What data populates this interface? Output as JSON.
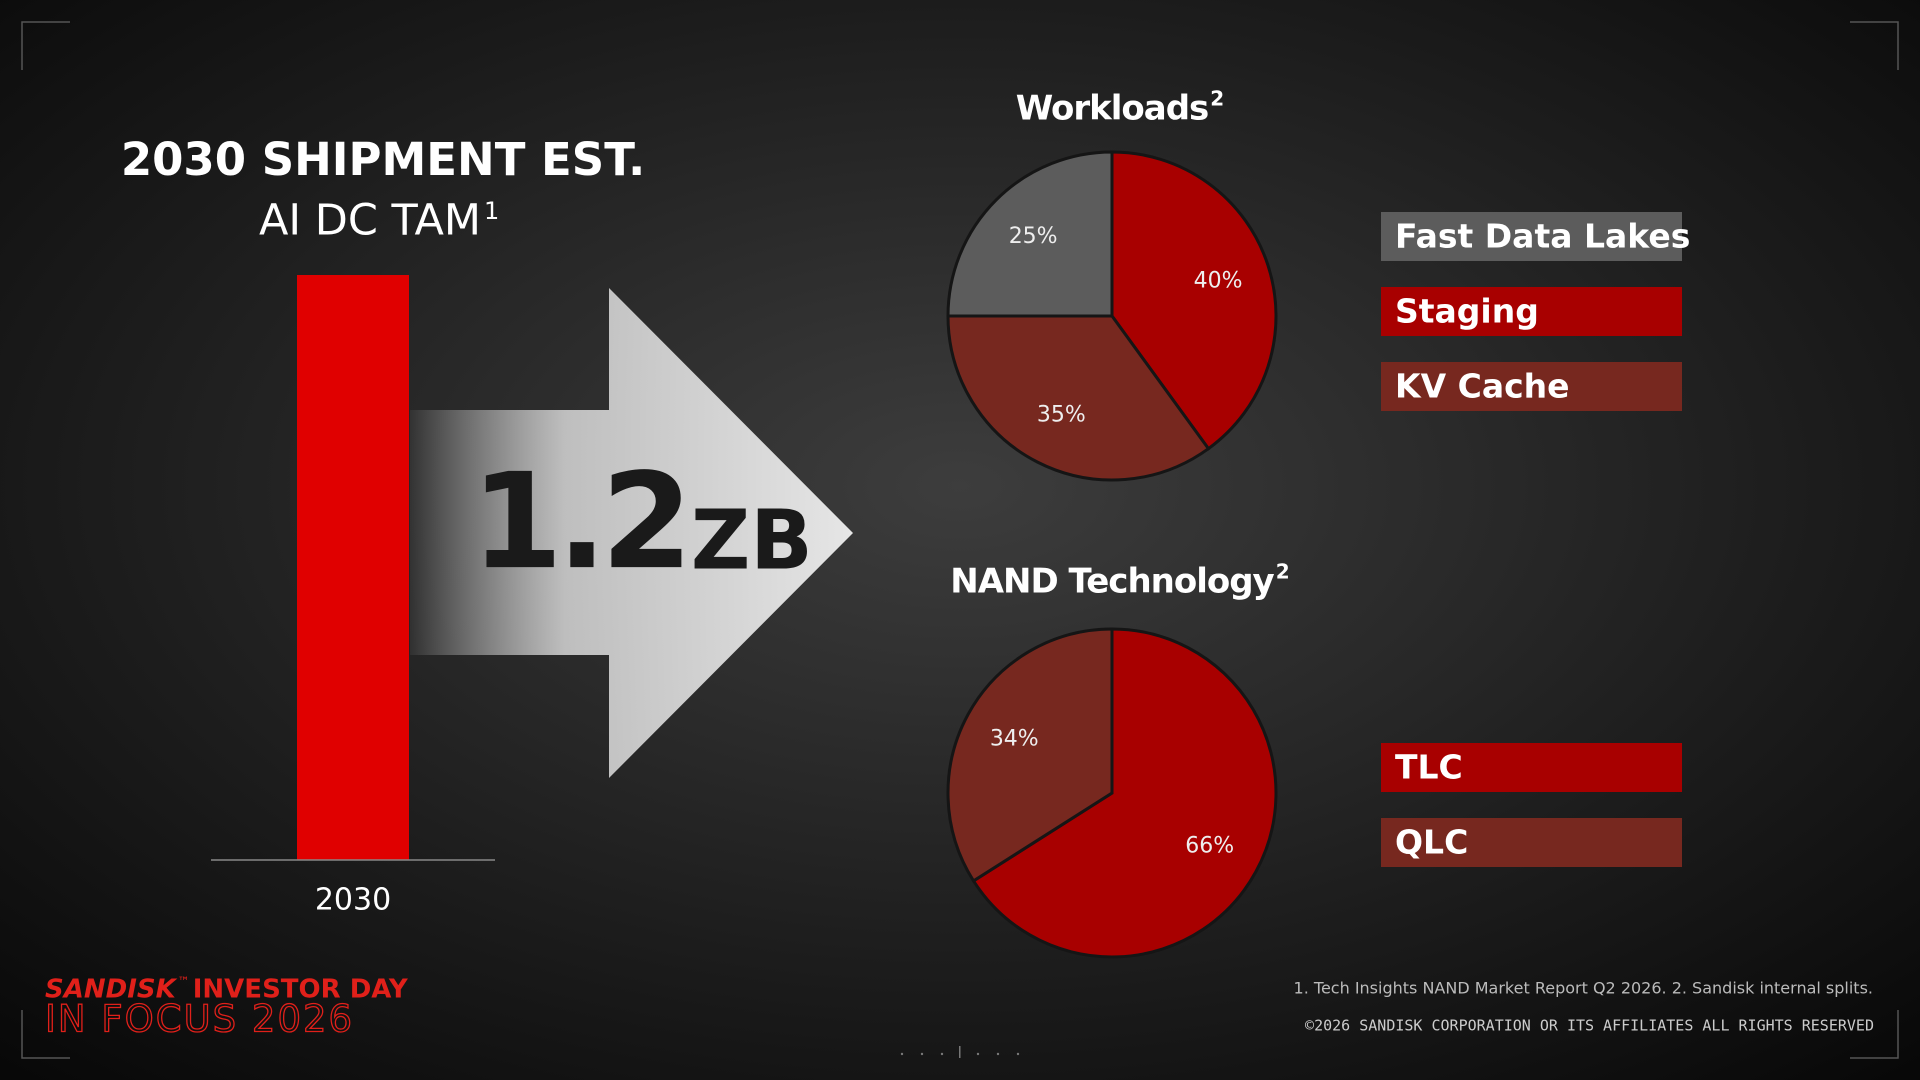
{
  "chart_data": [
    {
      "type": "bar",
      "title": "2030 SHIPMENT EST.",
      "subtitle": "AI DC TAM",
      "subtitle_footnote": "1",
      "categories": [
        "2030"
      ],
      "values": [
        1.2
      ],
      "unit": "ZB",
      "color": "#e00000"
    },
    {
      "type": "pie",
      "title": "Workloads",
      "title_footnote": "2",
      "categories": [
        "Fast Data Lakes",
        "Staging",
        "KV Cache"
      ],
      "values": [
        25,
        40,
        35
      ],
      "value_labels": [
        "25%",
        "40%",
        "35%"
      ],
      "colors": [
        "#5c5c5c",
        "#a80000",
        "#77281f"
      ]
    },
    {
      "type": "pie",
      "title": "NAND Technology",
      "title_footnote": "2",
      "categories": [
        "TLC",
        "QLC"
      ],
      "values": [
        66,
        34
      ],
      "value_labels": [
        "66%",
        "34%"
      ],
      "colors": [
        "#a80000",
        "#77281f"
      ]
    }
  ],
  "footnotes": "1. Tech Insights NAND Market Report Q2 2026.  2. Sandisk internal splits.",
  "copyright": "©2026 SANDISK CORPORATION OR ITS AFFILIATES ALL RIGHTS RESERVED",
  "brand": {
    "name": "SANDISK",
    "tm": "™",
    "event": "INVESTOR DAY",
    "tagline": "IN FOCUS 2026"
  }
}
